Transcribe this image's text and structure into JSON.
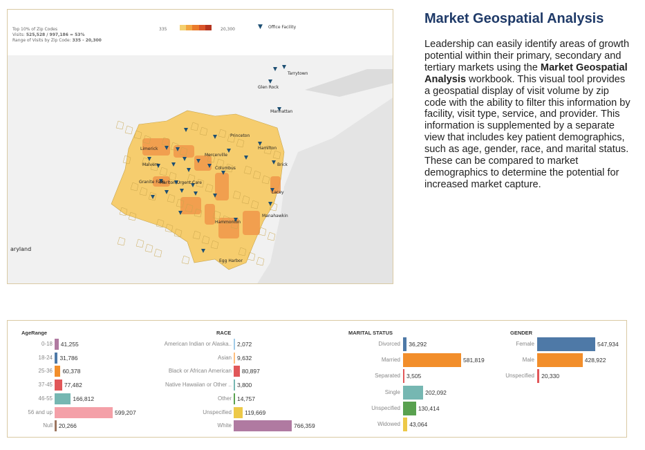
{
  "map": {
    "legend": {
      "title": "Top 10% of Zip Codes",
      "visits_label": "Visits:",
      "visits_value": "525,528 / 997,186 = 53%",
      "range_label": "Range of Visits by Zip Code:",
      "range_value": "335 - 20,300",
      "scale_min": "335",
      "scale_max": "20,300",
      "scale_colors": [
        "#f4d06f",
        "#f2a541",
        "#ea7b2c",
        "#d9552a",
        "#b5341f"
      ],
      "facility_label": "Office Facility",
      "facility_color": "#1d4f73"
    },
    "place_labels": [
      "Tarrytown",
      "Glen Rock",
      "Manhattan",
      "Princeton",
      "Hamilton",
      "Limerick",
      "Mercerville",
      "Columbus",
      "Malvern",
      "Granite Falls",
      "Marlton Urgent Care",
      "Brick",
      "Lacey",
      "Manahawkin",
      "Hammonton",
      "Egg Harbor",
      "aryland"
    ],
    "colors": {
      "land": "#f6cd6e",
      "hot": "#f0964a",
      "water": "#e4e4e4",
      "base": "#f1f1f1"
    }
  },
  "article": {
    "title": "Market Geospatial Analysis",
    "text_1": "Leadership can easily identify areas of growth potential within their primary, secondary and tertiary markets using the ",
    "text_bold": "Market Geospatial Analysis",
    "text_2": " workbook. This visual tool provides a geospatial display of visit volume by zip code with the ability to filter this information by facility, visit type, service, and provider. This information is supplemented by a separate view that includes key patient demographics, such as age, gender, race, and marital status. These can be compared to market demographics to determine the potential for increased market capture."
  },
  "chart_data": [
    {
      "type": "bar",
      "orientation": "horizontal",
      "title": "AgeRange",
      "categories": [
        "0-18",
        "18-24",
        "25-36",
        "37-45",
        "46-55",
        "56 and up",
        "Null"
      ],
      "values": [
        41255,
        31786,
        60378,
        77482,
        166812,
        599207,
        20266
      ],
      "labels": [
        "41,255",
        "31,786",
        "60,378",
        "77,482",
        "166,812",
        "599,207",
        "20,266"
      ],
      "colors": [
        "#b07aa1",
        "#4e79a7",
        "#f28e2b",
        "#e15759",
        "#76b7b2",
        "#f4a0a8",
        "#9c755f"
      ]
    },
    {
      "type": "bar",
      "orientation": "horizontal",
      "title": "RACE",
      "categories": [
        "American Indian or Alaska..",
        "Asian",
        "Black or African American",
        "Native Hawaiian or Other ..",
        "Other",
        "Unspecified",
        "White"
      ],
      "values": [
        2072,
        9632,
        80897,
        3800,
        14757,
        119669,
        766359
      ],
      "labels": [
        "2,072",
        "9,632",
        "80,897",
        "3,800",
        "14,757",
        "119,669",
        "766,359"
      ],
      "colors": [
        "#a0cbe8",
        "#ffbe7d",
        "#e15759",
        "#76b7b2",
        "#59a14f",
        "#edc948",
        "#b07aa1"
      ]
    },
    {
      "type": "bar",
      "orientation": "horizontal",
      "title": "MARITAL STATUS",
      "categories": [
        "Divorced",
        "Married",
        "Separated",
        "Single",
        "Unspecified",
        "Widowed"
      ],
      "values": [
        36292,
        581819,
        3505,
        202092,
        130414,
        43064
      ],
      "labels": [
        "36,292",
        "581,819",
        "3,505",
        "202,092",
        "130,414",
        "43,064"
      ],
      "colors": [
        "#4e79a7",
        "#f28e2b",
        "#e15759",
        "#76b7b2",
        "#59a14f",
        "#edc948"
      ]
    },
    {
      "type": "bar",
      "orientation": "horizontal",
      "title": "GENDER",
      "categories": [
        "Female",
        "Male",
        "Unspecified"
      ],
      "values": [
        547934,
        428922,
        20330
      ],
      "labels": [
        "547,934",
        "428,922",
        "20,330"
      ],
      "colors": [
        "#4e79a7",
        "#f28e2b",
        "#e15759"
      ]
    }
  ]
}
